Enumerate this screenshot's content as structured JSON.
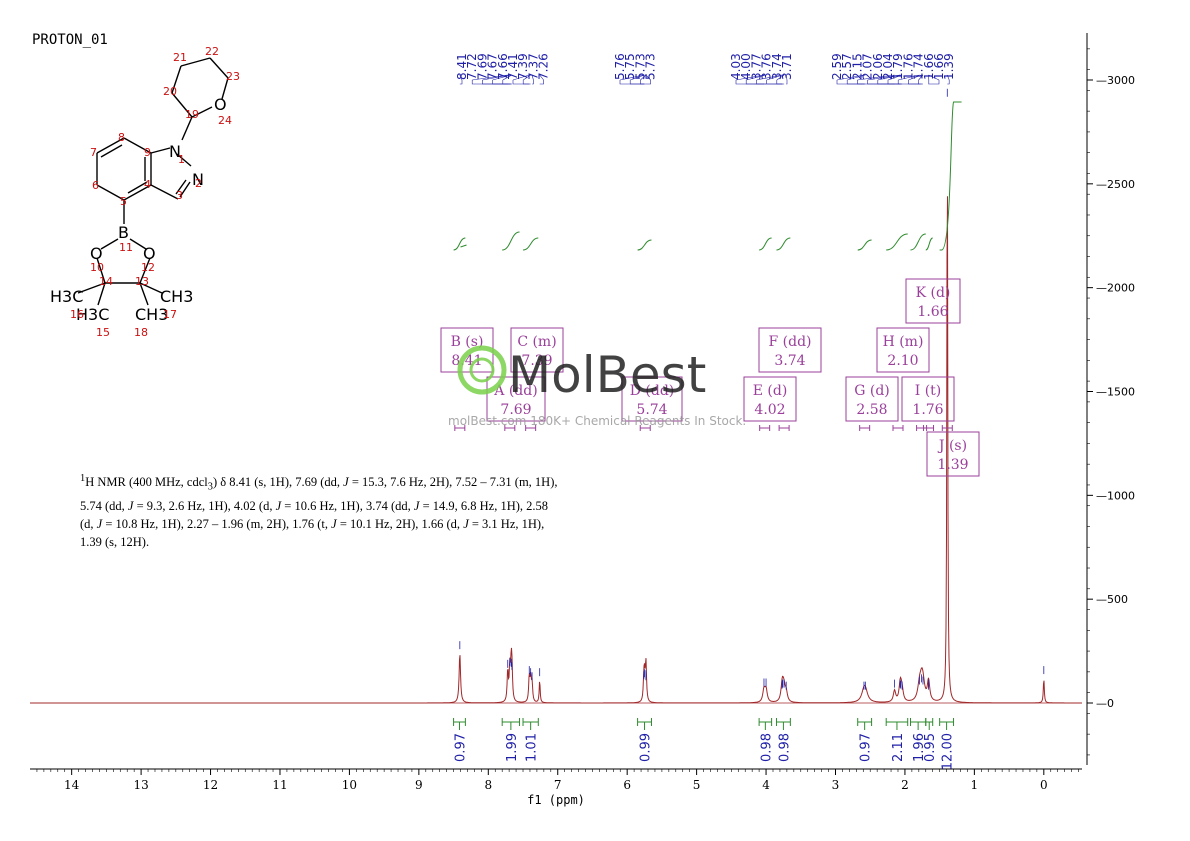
{
  "header": {
    "title": "PROTON_01"
  },
  "watermark": {
    "brand": "MolBest",
    "tagline": "molBest.com 180K+ Chemical Reagents In Stock."
  },
  "molecule": {
    "atom_numbers": [
      "1",
      "2",
      "3",
      "4",
      "5",
      "6",
      "7",
      "8",
      "9",
      "10",
      "11",
      "12",
      "13",
      "14",
      "15",
      "16",
      "17",
      "18",
      "19",
      "20",
      "21",
      "22",
      "23",
      "24"
    ],
    "labels": {
      "N1": "N",
      "N2": "N",
      "B": "B",
      "O10": "O",
      "O12": "O",
      "O24": "O",
      "H3C_left": "H3C",
      "H3C_mid": "H3C",
      "CH3_right": "CH3",
      "CH3_mid": "CH3"
    }
  },
  "nmr_description": {
    "sup": "1",
    "l1": "H NMR (400 MHz, cdcl",
    "sub": "3",
    "l1b": ") δ 8.41 (s, 1H), 7.69 (dd, ",
    "J": "J",
    "l1c": " = 15.3, 7.6 Hz, 2H), 7.52 – 7.31 (m, 1H),",
    "l2a": "5.74 (dd, ",
    "l2b": " = 9.3, 2.6 Hz, 1H), 4.02 (d, ",
    "l2c": " = 10.6 Hz, 1H), 3.74 (dd, ",
    "l2d": " = 14.9, 6.8 Hz, 1H), 2.58",
    "l3a": "(d, ",
    "l3b": " = 10.8 Hz, 1H), 2.27 – 1.96 (m, 2H), 1.76 (t, ",
    "l3c": " = 10.1 Hz, 2H), 1.66 (d, ",
    "l3d": " = 3.1 Hz, 1H),",
    "l4": "1.39 (s, 12H)."
  },
  "chart_data": {
    "type": "line",
    "xlabel": "f1 (ppm)",
    "xlim": [
      14.6,
      -0.55
    ],
    "ylim": [
      -300,
      3250
    ],
    "x_ticks": [
      14,
      13,
      12,
      11,
      10,
      9,
      8,
      7,
      6,
      5,
      4,
      3,
      2,
      1,
      0
    ],
    "y_ticks": [
      0,
      500,
      1000,
      1500,
      2000,
      2500,
      3000
    ],
    "peak_labels": [
      "8.41",
      "7.72",
      "7.69",
      "7.67",
      "7.66",
      "7.41",
      "7.39",
      "7.37",
      "7.26",
      "5.76",
      "5.75",
      "5.73",
      "5.73",
      "4.03",
      "4.00",
      "3.77",
      "3.76",
      "3.74",
      "3.71",
      "2.59",
      "2.57",
      "2.15",
      "2.07",
      "2.06",
      "2.04",
      "1.79",
      "1.76",
      "1.74",
      "1.66",
      "1.66",
      "1.39"
    ],
    "peaks": [
      {
        "ppm": 8.41,
        "height": 240,
        "width": 0.012
      },
      {
        "ppm": 7.72,
        "height": 150,
        "width": 0.01
      },
      {
        "ppm": 7.69,
        "height": 160,
        "width": 0.01
      },
      {
        "ppm": 7.67,
        "height": 155,
        "width": 0.01
      },
      {
        "ppm": 7.66,
        "height": 140,
        "width": 0.01
      },
      {
        "ppm": 7.41,
        "height": 120,
        "width": 0.01
      },
      {
        "ppm": 7.39,
        "height": 110,
        "width": 0.01
      },
      {
        "ppm": 7.37,
        "height": 90,
        "width": 0.01
      },
      {
        "ppm": 7.26,
        "height": 110,
        "width": 0.008
      },
      {
        "ppm": 5.76,
        "height": 95,
        "width": 0.01
      },
      {
        "ppm": 5.75,
        "height": 105,
        "width": 0.01
      },
      {
        "ppm": 5.73,
        "height": 100,
        "width": 0.01
      },
      {
        "ppm": 5.73,
        "height": 90,
        "width": 0.01
      },
      {
        "ppm": 4.03,
        "height": 60,
        "width": 0.02
      },
      {
        "ppm": 4.0,
        "height": 60,
        "width": 0.02
      },
      {
        "ppm": 3.77,
        "height": 50,
        "width": 0.02
      },
      {
        "ppm": 3.76,
        "height": 55,
        "width": 0.02
      },
      {
        "ppm": 3.74,
        "height": 55,
        "width": 0.02
      },
      {
        "ppm": 3.71,
        "height": 45,
        "width": 0.02
      },
      {
        "ppm": 2.59,
        "height": 45,
        "width": 0.04
      },
      {
        "ppm": 2.57,
        "height": 45,
        "width": 0.04
      },
      {
        "ppm": 2.15,
        "height": 55,
        "width": 0.02
      },
      {
        "ppm": 2.07,
        "height": 55,
        "width": 0.02
      },
      {
        "ppm": 2.06,
        "height": 50,
        "width": 0.02
      },
      {
        "ppm": 2.04,
        "height": 45,
        "width": 0.02
      },
      {
        "ppm": 1.79,
        "height": 70,
        "width": 0.03
      },
      {
        "ppm": 1.76,
        "height": 80,
        "width": 0.03
      },
      {
        "ppm": 1.74,
        "height": 70,
        "width": 0.03
      },
      {
        "ppm": 1.66,
        "height": 55,
        "width": 0.02
      },
      {
        "ppm": 1.66,
        "height": 45,
        "width": 0.02
      },
      {
        "ppm": 1.39,
        "height": 2900,
        "width": 0.007
      },
      {
        "ppm": 0.0,
        "height": 120,
        "width": 0.008
      }
    ],
    "multiplets": [
      {
        "label": "A (dd)",
        "shift": "7.69",
        "ppm": 7.69
      },
      {
        "label": "B (s)",
        "shift": "8.41",
        "ppm": 8.41
      },
      {
        "label": "C (m)",
        "shift": "7.39",
        "ppm": 7.39
      },
      {
        "label": "D (dd)",
        "shift": "5.74",
        "ppm": 5.74
      },
      {
        "label": "E (d)",
        "shift": "4.02",
        "ppm": 4.02
      },
      {
        "label": "F (dd)",
        "shift": "3.74",
        "ppm": 3.74
      },
      {
        "label": "G (d)",
        "shift": "2.58",
        "ppm": 2.58
      },
      {
        "label": "H (m)",
        "shift": "2.10",
        "ppm": 2.1
      },
      {
        "label": "I (t)",
        "shift": "1.76",
        "ppm": 1.76
      },
      {
        "label": "J (s)",
        "shift": "1.39",
        "ppm": 1.39
      },
      {
        "label": "K (d)",
        "shift": "1.66",
        "ppm": 1.66
      }
    ],
    "integrals": [
      {
        "value": "0.97",
        "from": 8.5,
        "to": 8.33
      },
      {
        "value": "1.99",
        "from": 7.8,
        "to": 7.55
      },
      {
        "value": "1.01",
        "from": 7.5,
        "to": 7.28
      },
      {
        "value": "0.99",
        "from": 5.85,
        "to": 5.65
      },
      {
        "value": "0.98",
        "from": 4.1,
        "to": 3.92
      },
      {
        "value": "0.98",
        "from": 3.85,
        "to": 3.65
      },
      {
        "value": "0.97",
        "from": 2.68,
        "to": 2.48
      },
      {
        "value": "2.11",
        "from": 2.27,
        "to": 1.96
      },
      {
        "value": "1.96",
        "from": 1.92,
        "to": 1.7
      },
      {
        "value": "0.95",
        "from": 1.7,
        "to": 1.6
      },
      {
        "value": "12.00",
        "from": 1.5,
        "to": 1.3
      }
    ]
  },
  "colors": {
    "spectrum": "#a0282a",
    "integral": "#2e8b2e",
    "label": "#1f1fa8",
    "box": "#9a3f9a",
    "axis": "#000000",
    "atom_num": "#cc1010"
  }
}
